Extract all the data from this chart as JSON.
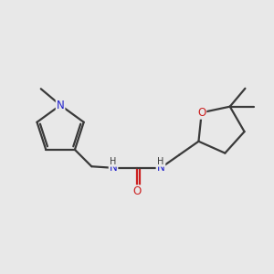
{
  "bg_color": "#e8e8e8",
  "bond_color": "#3a3a3a",
  "N_color": "#2020cc",
  "O_color": "#cc2020",
  "line_width": 1.6,
  "font_size_atom": 8.5,
  "font_size_H": 7.0,
  "figsize": [
    3.0,
    3.0
  ],
  "dpi": 100,
  "xlim": [
    -5.5,
    3.8
  ],
  "ylim": [
    -1.6,
    2.2
  ]
}
